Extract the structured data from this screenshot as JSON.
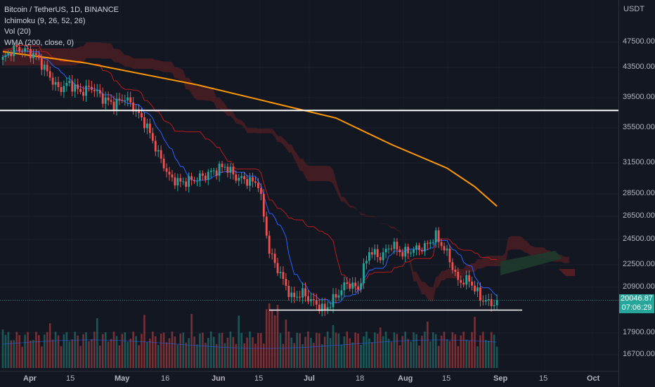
{
  "legend": {
    "symbol": "Bitcoin / TetherUS, 1D, BINANCE",
    "ichimoku": "Ichimoku (9, 26, 52, 26)",
    "volume": "Vol (20)",
    "wma": "WMA (200, close, 0)"
  },
  "price_axis": {
    "currency": "USDT",
    "last_price": "20046.87",
    "countdown": "07:06:29"
  },
  "colors": {
    "background": "#131722",
    "up": "#26a69a",
    "down": "#ef5350",
    "wma": "#ff9800",
    "tenkan": "#2962ff",
    "kijun": "#b71c1c",
    "cloud_bear": "#5a1f24",
    "cloud_bull": "#1f3b2e",
    "hline": "#ffffff"
  },
  "chart_data": {
    "type": "candlestick",
    "y_ticks": [
      47500,
      43500,
      39500,
      35500,
      31500,
      28500,
      26500,
      24500,
      22500,
      20900,
      17900,
      16700
    ],
    "y_tick_labels": [
      "47500.00",
      "43500.00",
      "39500.00",
      "35500.00",
      "31500.00",
      "28500.00",
      "26500.00",
      "24500.00",
      "22500.00",
      "20900.00",
      "17900.00",
      "16700.00"
    ],
    "x_ticks": [
      "Apr",
      "15",
      "May",
      "16",
      "Jun",
      "15",
      "Jul",
      "18",
      "Aug",
      "15",
      "Sep",
      "15",
      "Oct"
    ],
    "horizontal_lines": [
      37800,
      19400
    ],
    "wma200": [
      [
        0,
        46000
      ],
      [
        30,
        44200
      ],
      [
        70,
        41200
      ],
      [
        120,
        36800
      ],
      [
        140,
        33600
      ],
      [
        160,
        31000
      ],
      [
        170,
        29200
      ],
      [
        178,
        27400
      ]
    ],
    "price_path": [
      [
        0,
        44800
      ],
      [
        4,
        46500
      ],
      [
        8,
        46200
      ],
      [
        12,
        45300
      ],
      [
        16,
        42800
      ],
      [
        20,
        40600
      ],
      [
        24,
        41400
      ],
      [
        28,
        40200
      ],
      [
        32,
        40900
      ],
      [
        36,
        39400
      ],
      [
        40,
        38600
      ],
      [
        44,
        39500
      ],
      [
        48,
        37800
      ],
      [
        52,
        35600
      ],
      [
        56,
        32500
      ],
      [
        60,
        30100
      ],
      [
        64,
        29600
      ],
      [
        68,
        29800
      ],
      [
        72,
        30200
      ],
      [
        76,
        30700
      ],
      [
        80,
        31200
      ],
      [
        84,
        30100
      ],
      [
        88,
        29800
      ],
      [
        92,
        29500
      ],
      [
        96,
        23500
      ],
      [
        100,
        21800
      ],
      [
        104,
        20200
      ],
      [
        108,
        20500
      ],
      [
        112,
        19900
      ],
      [
        116,
        19400
      ],
      [
        120,
        20300
      ],
      [
        124,
        21200
      ],
      [
        128,
        20800
      ],
      [
        132,
        23600
      ],
      [
        136,
        23100
      ],
      [
        140,
        24100
      ],
      [
        144,
        23400
      ],
      [
        148,
        23700
      ],
      [
        152,
        23900
      ],
      [
        156,
        24800
      ],
      [
        160,
        23400
      ],
      [
        164,
        21300
      ],
      [
        168,
        21400
      ],
      [
        172,
        20200
      ],
      [
        176,
        19800
      ],
      [
        178,
        20047
      ]
    ],
    "x_domain": [
      0,
      215
    ],
    "price_range": [
      16700,
      47500
    ]
  }
}
